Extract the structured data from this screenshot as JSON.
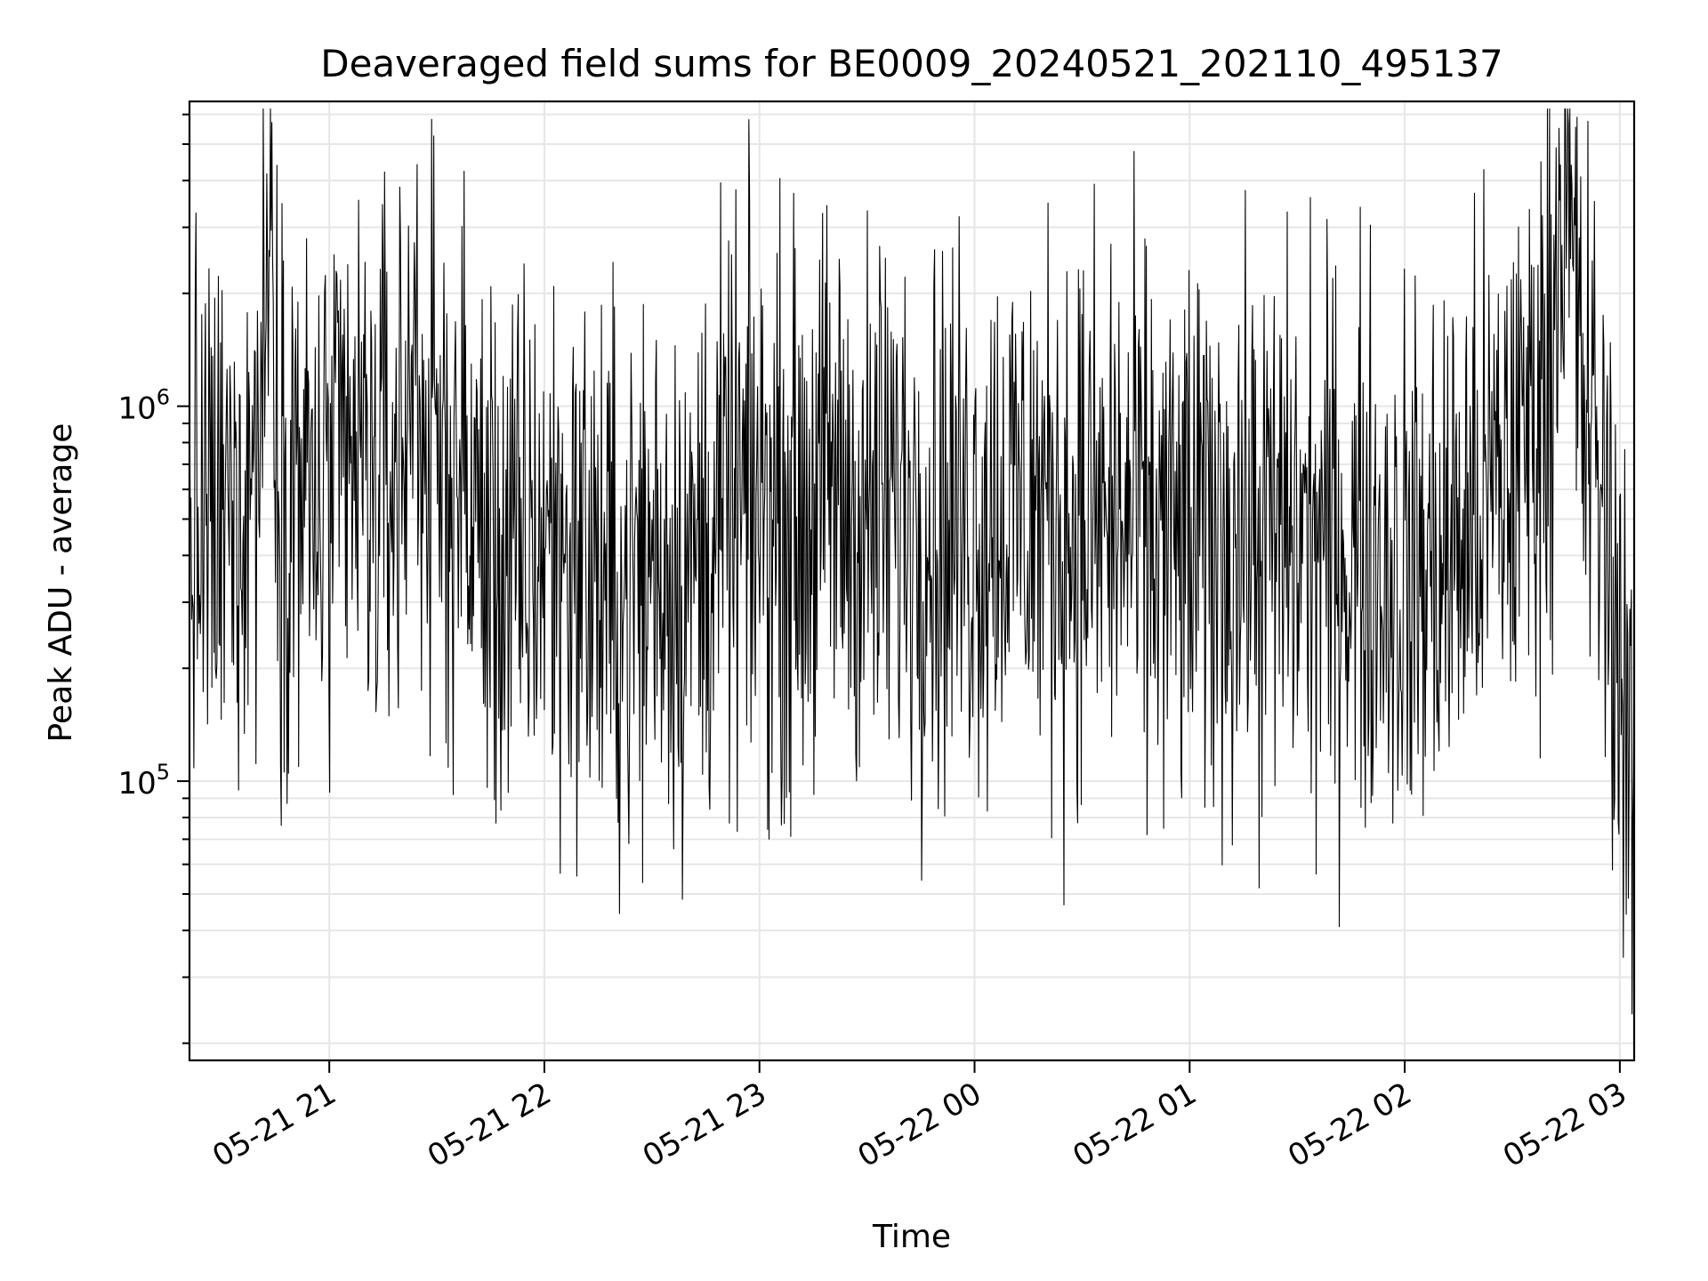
{
  "chart_data": {
    "type": "line",
    "title": "Deaveraged field sums for BE0009_20240521_202110_495137",
    "xlabel": "Time",
    "ylabel": "Peak ADU - average",
    "yscale": "log",
    "xlim": [
      "2024-05-21 20:21",
      "2024-05-22 03:04"
    ],
    "ylim": [
      18000,
      6500000
    ],
    "grid": true,
    "x_ticks": [
      {
        "value": "2024-05-21 21:00",
        "label": "05-21 21"
      },
      {
        "value": "2024-05-21 22:00",
        "label": "05-21 22"
      },
      {
        "value": "2024-05-21 23:00",
        "label": "05-21 23"
      },
      {
        "value": "2024-05-22 00:00",
        "label": "05-22 00"
      },
      {
        "value": "2024-05-22 01:00",
        "label": "05-22 01"
      },
      {
        "value": "2024-05-22 02:00",
        "label": "05-22 02"
      },
      {
        "value": "2024-05-22 03:00",
        "label": "05-22 03"
      }
    ],
    "y_ticks": [
      {
        "value": 100000,
        "base": "10",
        "exp": "5"
      },
      {
        "value": 1000000,
        "base": "10",
        "exp": "6"
      }
    ],
    "series": [
      {
        "color": "#000000",
        "x": [
          "2024-05-21 20:21",
          "2024-05-21 20:30",
          "2024-05-21 20:40",
          "2024-05-21 20:44",
          "2024-05-21 20:46",
          "2024-05-21 20:50",
          "2024-05-21 20:56",
          "2024-05-21 21:00",
          "2024-05-21 21:08",
          "2024-05-21 21:12",
          "2024-05-21 21:20",
          "2024-05-21 21:24",
          "2024-05-21 21:28",
          "2024-05-21 21:35",
          "2024-05-21 21:45",
          "2024-05-21 21:52",
          "2024-05-21 22:00",
          "2024-05-21 22:10",
          "2024-05-21 22:20",
          "2024-05-21 22:32",
          "2024-05-21 22:40",
          "2024-05-21 22:50",
          "2024-05-21 23:00",
          "2024-05-21 23:10",
          "2024-05-21 23:20",
          "2024-05-21 23:30",
          "2024-05-21 23:40",
          "2024-05-21 23:50",
          "2024-05-22 00:00",
          "2024-05-22 00:10",
          "2024-05-22 00:20",
          "2024-05-22 00:30",
          "2024-05-22 00:40",
          "2024-05-22 00:50",
          "2024-05-22 01:00",
          "2024-05-22 01:10",
          "2024-05-22 01:20",
          "2024-05-22 01:30",
          "2024-05-22 01:40",
          "2024-05-22 01:50",
          "2024-05-22 02:00",
          "2024-05-22 02:10",
          "2024-05-22 02:20",
          "2024-05-22 02:30",
          "2024-05-22 02:40",
          "2024-05-22 02:44",
          "2024-05-22 02:50",
          "2024-05-22 02:55",
          "2024-05-22 02:58",
          "2024-05-22 03:00",
          "2024-05-22 03:02",
          "2024-05-22 03:04"
        ],
        "y": [
          450000,
          450000,
          800000,
          3800000,
          600000,
          700000,
          500000,
          550000,
          700000,
          600000,
          700000,
          1500000,
          650000,
          700000,
          400000,
          350000,
          450000,
          400000,
          300000,
          400000,
          350000,
          500000,
          550000,
          500000,
          600000,
          500000,
          550000,
          500000,
          500000,
          550000,
          520000,
          480000,
          500000,
          450000,
          420000,
          460000,
          440000,
          450000,
          420000,
          400000,
          350000,
          380000,
          500000,
          700000,
          1200000,
          4500000,
          1000000,
          600000,
          300000,
          250000,
          150000,
          60000
        ]
      }
    ],
    "noise_amplitude_decades": 0.75
  }
}
